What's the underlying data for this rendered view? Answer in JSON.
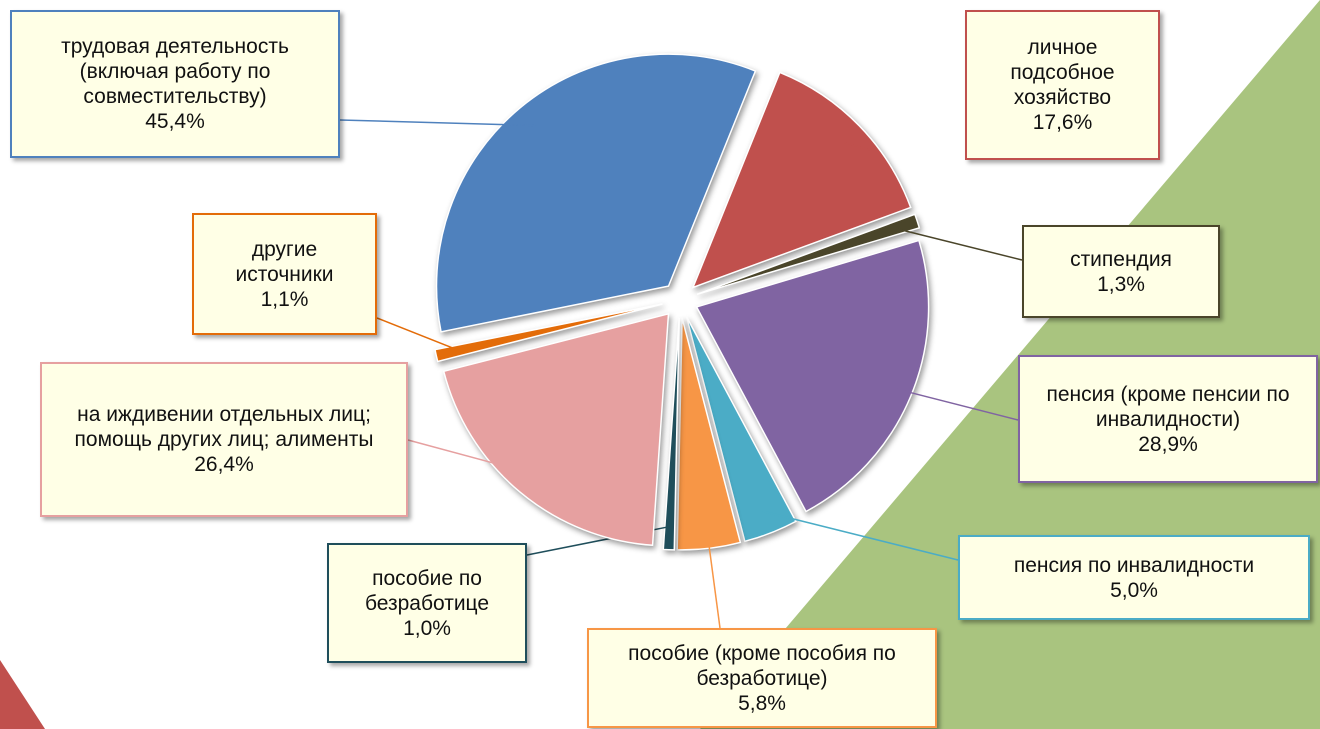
{
  "chart_data": {
    "type": "pie",
    "categories": [
      "личное подсобное хозяйство",
      "стипендия",
      "пенсия (кроме пенсии по инвалидности)",
      "пенсия по инвалидности",
      "пособие (кроме пособия по безработице)",
      "пособие по безработице",
      "на иждивении отдельных лиц; помощь других лиц; алименты",
      "другие источники",
      "трудовая деятельность (включая работу по совместительству)"
    ],
    "values": [
      17.6,
      1.3,
      28.9,
      5.0,
      5.8,
      1.0,
      26.4,
      1.1,
      45.4
    ],
    "value_labels": [
      "17,6%",
      "1,3%",
      "28,9%",
      "5,0%",
      "5,8%",
      "1,0%",
      "26,4%",
      "1,1%",
      "45,4%"
    ],
    "colors": [
      "#c0504d",
      "#4a452a",
      "#8064a2",
      "#4bacc6",
      "#f79646",
      "#1f4e5b",
      "#e6a0a0",
      "#e36c09",
      "#4f81bd"
    ]
  }
}
